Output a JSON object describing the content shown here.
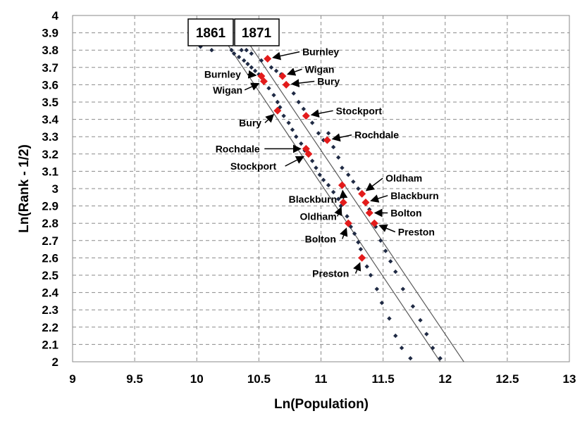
{
  "chart_data": {
    "type": "scatter",
    "xlabel": "Ln(Population)",
    "ylabel": "Ln(Rank - 1/2)",
    "xlim": [
      9,
      13
    ],
    "ylim": [
      2,
      4
    ],
    "xticks": [
      "9",
      "9.5",
      "10",
      "10.5",
      "11",
      "11.5",
      "12",
      "12.5",
      "13"
    ],
    "yticks": [
      "2",
      "2.1",
      "2.2",
      "2.3",
      "2.4",
      "2.5",
      "2.6",
      "2.7",
      "2.8",
      "2.9",
      "3",
      "3.1",
      "3.2",
      "3.3",
      "3.4",
      "3.5",
      "3.6",
      "3.7",
      "3.8",
      "3.9",
      "4"
    ],
    "grid": true,
    "year_labels": [
      "1861",
      "1871"
    ],
    "series": [
      {
        "color": "#1f2a44",
        "points": [
          [
            10.03,
            3.82
          ],
          [
            10.12,
            3.8
          ],
          [
            10.3,
            3.78
          ],
          [
            10.34,
            3.76
          ],
          [
            10.38,
            3.74
          ],
          [
            10.41,
            3.72
          ],
          [
            10.44,
            3.7
          ],
          [
            10.47,
            3.68
          ],
          [
            10.5,
            3.66
          ],
          [
            10.58,
            3.58
          ],
          [
            10.62,
            3.54
          ],
          [
            10.65,
            3.5
          ],
          [
            10.67,
            3.47
          ],
          [
            10.7,
            3.42
          ],
          [
            10.74,
            3.38
          ],
          [
            10.77,
            3.34
          ],
          [
            10.8,
            3.3
          ],
          [
            10.84,
            3.26
          ],
          [
            10.87,
            3.22
          ],
          [
            10.93,
            3.16
          ],
          [
            10.96,
            3.12
          ],
          [
            10.99,
            3.08
          ],
          [
            11.02,
            3.05
          ],
          [
            11.06,
            3.02
          ],
          [
            11.1,
            2.98
          ],
          [
            11.14,
            2.94
          ],
          [
            11.16,
            2.9
          ],
          [
            11.21,
            2.84
          ],
          [
            11.24,
            2.78
          ],
          [
            11.27,
            2.74
          ],
          [
            11.3,
            2.69
          ],
          [
            11.32,
            2.65
          ],
          [
            11.37,
            2.55
          ],
          [
            11.4,
            2.5
          ],
          [
            11.45,
            2.42
          ],
          [
            11.49,
            2.34
          ],
          [
            11.55,
            2.25
          ],
          [
            11.6,
            2.15
          ],
          [
            11.65,
            2.08
          ],
          [
            11.72,
            2.02
          ]
        ]
      },
      {
        "color": "#1f2a44",
        "points": [
          [
            10.28,
            3.8
          ],
          [
            10.36,
            3.8
          ],
          [
            10.4,
            3.8
          ],
          [
            10.44,
            3.78
          ],
          [
            10.52,
            3.74
          ],
          [
            10.6,
            3.7
          ],
          [
            10.64,
            3.68
          ],
          [
            10.68,
            3.66
          ],
          [
            10.78,
            3.55
          ],
          [
            10.82,
            3.5
          ],
          [
            10.86,
            3.46
          ],
          [
            10.93,
            3.38
          ],
          [
            10.98,
            3.32
          ],
          [
            11.02,
            3.28
          ],
          [
            11.06,
            3.32
          ],
          [
            11.1,
            3.24
          ],
          [
            11.14,
            3.18
          ],
          [
            11.17,
            3.12
          ],
          [
            11.22,
            3.08
          ],
          [
            11.26,
            3.04
          ],
          [
            11.3,
            3.0
          ],
          [
            11.39,
            2.88
          ],
          [
            11.44,
            2.78
          ],
          [
            11.48,
            2.7
          ],
          [
            11.52,
            2.64
          ],
          [
            11.56,
            2.58
          ],
          [
            11.6,
            2.52
          ],
          [
            11.66,
            2.42
          ],
          [
            11.74,
            2.32
          ],
          [
            11.8,
            2.24
          ],
          [
            11.85,
            2.16
          ],
          [
            11.9,
            2.08
          ],
          [
            11.96,
            2.02
          ]
        ]
      }
    ],
    "highlighted": [
      {
        "color": "#e31b1b",
        "year": "1861",
        "points": [
          {
            "name": "Burnley",
            "x": 10.52,
            "y": 3.65
          },
          {
            "name": "Wigan",
            "x": 10.54,
            "y": 3.62
          },
          {
            "name": "Bury",
            "x": 10.65,
            "y": 3.45
          },
          {
            "name": "Rochdale",
            "x": 10.88,
            "y": 3.23
          },
          {
            "name": "Stockport",
            "x": 10.9,
            "y": 3.2
          },
          {
            "name": "Blackburn",
            "x": 11.17,
            "y": 3.02
          },
          {
            "name": "Oldham",
            "x": 11.18,
            "y": 2.92
          },
          {
            "name": "Bolton",
            "x": 11.22,
            "y": 2.8
          },
          {
            "name": "Preston",
            "x": 11.33,
            "y": 2.6
          }
        ]
      },
      {
        "color": "#e31b1b",
        "year": "1871",
        "points": [
          {
            "name": "Burnley",
            "x": 10.57,
            "y": 3.75
          },
          {
            "name": "Wigan",
            "x": 10.69,
            "y": 3.65
          },
          {
            "name": "Bury",
            "x": 10.72,
            "y": 3.6
          },
          {
            "name": "Stockport",
            "x": 10.88,
            "y": 3.42
          },
          {
            "name": "Rochdale",
            "x": 11.05,
            "y": 3.28
          },
          {
            "name": "Oldham",
            "x": 11.33,
            "y": 2.97
          },
          {
            "name": "Blackburn",
            "x": 11.36,
            "y": 2.92
          },
          {
            "name": "Bolton",
            "x": 11.39,
            "y": 2.86
          },
          {
            "name": "Preston",
            "x": 11.43,
            "y": 2.8
          }
        ]
      }
    ],
    "fit_lines": [
      {
        "year": "1861",
        "x1": 10.25,
        "y1": 3.83,
        "x2": 11.96,
        "y2": 2.0
      },
      {
        "year": "1871",
        "x1": 10.38,
        "y1": 3.88,
        "x2": 12.15,
        "y2": 2.0
      }
    ],
    "annotations": [
      {
        "text": "Burnley",
        "city_x": 10.57,
        "city_y": 3.75,
        "label_x": 10.85,
        "label_y": 3.79
      },
      {
        "text": "Wigan",
        "city_x": 10.69,
        "city_y": 3.65,
        "label_x": 10.87,
        "label_y": 3.69
      },
      {
        "text": "Bury",
        "city_x": 10.72,
        "city_y": 3.6,
        "label_x": 10.97,
        "label_y": 3.62
      },
      {
        "text": "Stockport",
        "city_x": 10.88,
        "city_y": 3.42,
        "label_x": 11.12,
        "label_y": 3.45
      },
      {
        "text": "Rochdale",
        "city_x": 11.05,
        "city_y": 3.28,
        "label_x": 11.27,
        "label_y": 3.31
      },
      {
        "text": "Oldham",
        "city_x": 11.33,
        "city_y": 2.97,
        "label_x": 11.52,
        "label_y": 3.06
      },
      {
        "text": "Blackburn",
        "city_x": 11.36,
        "city_y": 2.92,
        "label_x": 11.56,
        "label_y": 2.96
      },
      {
        "text": "Bolton",
        "city_x": 11.39,
        "city_y": 2.86,
        "label_x": 11.56,
        "label_y": 2.86
      },
      {
        "text": "Preston",
        "city_x": 11.43,
        "city_y": 2.8,
        "label_x": 11.62,
        "label_y": 2.75
      },
      {
        "text": "Burnley",
        "city_x": 10.52,
        "city_y": 3.65,
        "label_x": 10.06,
        "label_y": 3.66
      },
      {
        "text": "Wigan",
        "city_x": 10.54,
        "city_y": 3.62,
        "label_x": 10.13,
        "label_y": 3.57
      },
      {
        "text": "Bury",
        "city_x": 10.65,
        "city_y": 3.45,
        "label_x": 10.34,
        "label_y": 3.38
      },
      {
        "text": "Rochdale",
        "city_x": 10.88,
        "city_y": 3.23,
        "label_x": 10.15,
        "label_y": 3.23
      },
      {
        "text": "Stockport",
        "city_x": 10.9,
        "city_y": 3.2,
        "label_x": 10.27,
        "label_y": 3.13
      },
      {
        "text": "Blackburn",
        "city_x": 11.17,
        "city_y": 3.02,
        "label_x": 10.74,
        "label_y": 2.94
      },
      {
        "text": "Oldham",
        "city_x": 11.18,
        "city_y": 2.92,
        "label_x": 10.83,
        "label_y": 2.84
      },
      {
        "text": "Bolton",
        "city_x": 11.22,
        "city_y": 2.8,
        "label_x": 10.87,
        "label_y": 2.71
      },
      {
        "text": "Preston",
        "city_x": 11.33,
        "city_y": 2.6,
        "label_x": 10.93,
        "label_y": 2.51
      }
    ]
  }
}
